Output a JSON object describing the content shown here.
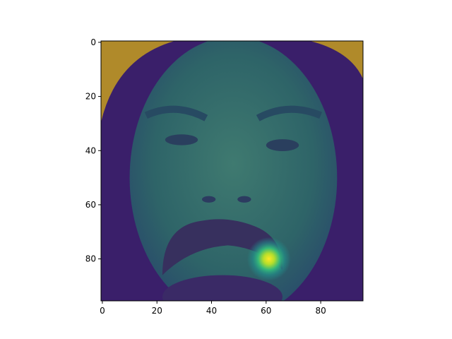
{
  "chart_data": {
    "type": "heatmap",
    "title": "",
    "xlabel": "",
    "ylabel": "",
    "image_size": [
      96,
      96
    ],
    "xlim": [
      -0.5,
      95.5
    ],
    "ylim": [
      95.5,
      -0.5
    ],
    "x_ticks": [
      0,
      20,
      40,
      60,
      80
    ],
    "y_ticks": [
      0,
      20,
      40,
      60,
      80
    ],
    "x_tick_labels": [
      "0",
      "20",
      "40",
      "60",
      "80"
    ],
    "y_tick_labels": [
      "0",
      "20",
      "40",
      "60",
      "80"
    ],
    "origin": "upper",
    "colormap": "viridis",
    "overlay_alpha": 0.5,
    "hotspot": {
      "x": 61,
      "y": 80,
      "radius": 8
    },
    "background_color": "#b08a2a",
    "face_color": "#2e6a6a",
    "hair_color": "#3a1f6a"
  }
}
